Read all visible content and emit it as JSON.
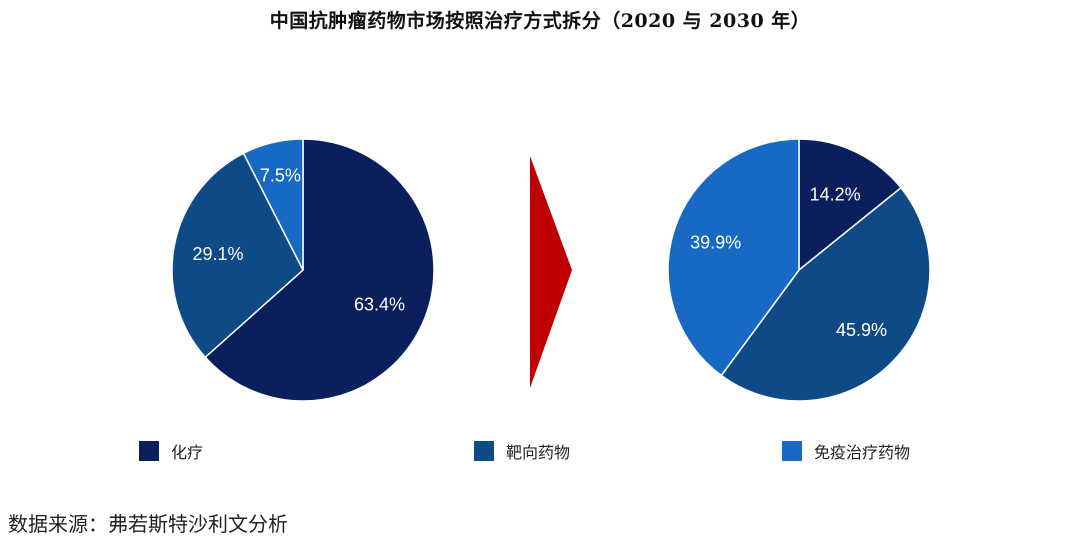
{
  "title": "中国抗肿瘤药物市场按照治疗方式拆分（2020 与 2030 年）",
  "source": "数据来源：弗若斯特沙利文分析",
  "chart_data": [
    {
      "type": "pie",
      "categories": [
        "化疗",
        "靶向药物",
        "免疫治疗药物"
      ],
      "values": [
        63.4,
        29.1,
        7.5
      ],
      "labels": [
        "63.4%",
        "29.1%",
        "7.5%"
      ]
    },
    {
      "type": "pie",
      "categories": [
        "化疗",
        "靶向药物",
        "免疫治疗药物"
      ],
      "values": [
        14.2,
        45.9,
        39.9
      ],
      "labels": [
        "14.2%",
        "45.9%",
        "39.9%"
      ]
    }
  ],
  "legend": [
    {
      "label": "化疗",
      "color": "#0a1f5c"
    },
    {
      "label": "靶向药物",
      "color": "#0e4a86"
    },
    {
      "label": "免疫治疗药物",
      "color": "#1769c4"
    }
  ],
  "colors": {
    "arrow": "#c00000",
    "slice_border": "#ffffff"
  }
}
